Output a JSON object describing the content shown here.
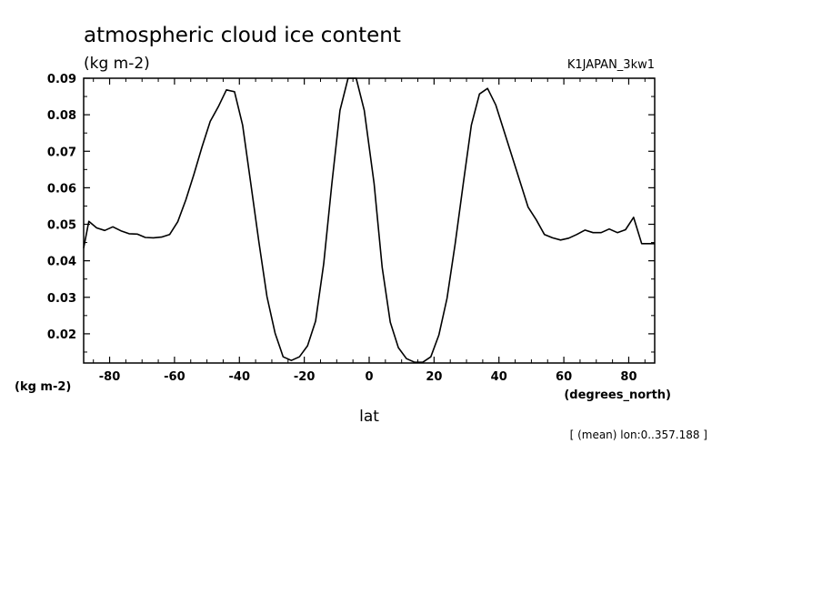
{
  "chart_data": {
    "type": "line",
    "title": "atmospheric cloud ice content",
    "subtitle": "(kg m-2)",
    "run_label": "K1JAPAN_3kw1",
    "ylabel": "(kg m-2)",
    "xlabel": "lat",
    "xunit": "(degrees_north)",
    "footnote": "[ (mean) lon:0..357.188 ]",
    "xlim": [
      -88,
      88
    ],
    "ylim": [
      0.012,
      0.09
    ],
    "xticks": [
      -80,
      -60,
      -40,
      -20,
      0,
      20,
      40,
      60,
      80
    ],
    "xtick_labels": [
      "-80",
      "-60",
      "-40",
      "-20",
      "0",
      "20",
      "40",
      "60",
      "80"
    ],
    "yticks": [
      0.02,
      0.03,
      0.04,
      0.05,
      0.06,
      0.07,
      0.08,
      0.09
    ],
    "ytick_labels": [
      "0.02",
      "0.03",
      "0.04",
      "0.05",
      "0.06",
      "0.07",
      "0.08",
      "0.09"
    ],
    "grid": false,
    "series": [
      {
        "x": [
          -88,
          -86.4,
          -84,
          -81.5,
          -79,
          -76.5,
          -74,
          -71.5,
          -69,
          -66.5,
          -64,
          -61.5,
          -59,
          -56.5,
          -54,
          -51.5,
          -49,
          -46.5,
          -44,
          -41.5,
          -39,
          -36.5,
          -34,
          -31.5,
          -29,
          -26.5,
          -24,
          -21.5,
          -19,
          -16.5,
          -14,
          -11.5,
          -9,
          -6.5,
          -4,
          -1.5,
          1.5,
          4,
          6.5,
          9,
          11.5,
          14,
          16.5,
          19,
          21.5,
          24,
          26.5,
          29,
          31.5,
          34,
          36.5,
          39,
          41.5,
          44,
          46.5,
          49,
          51.5,
          54,
          56.5,
          59,
          61.5,
          64,
          66.5,
          69,
          71.5,
          74,
          76.5,
          79,
          81.5,
          84,
          86.4,
          88
        ],
        "y": [
          0.0435,
          0.0508,
          0.049,
          0.0483,
          0.0493,
          0.0482,
          0.0474,
          0.0473,
          0.0464,
          0.0463,
          0.0465,
          0.0472,
          0.0507,
          0.0567,
          0.0637,
          0.0712,
          0.0782,
          0.0822,
          0.0868,
          0.0863,
          0.0772,
          0.0612,
          0.0452,
          0.0302,
          0.0202,
          0.0137,
          0.0127,
          0.0137,
          0.0167,
          0.0235,
          0.0392,
          0.0612,
          0.0812,
          0.0902,
          0.0902,
          0.0812,
          0.0612,
          0.0382,
          0.0232,
          0.0162,
          0.0132,
          0.0122,
          0.0122,
          0.0137,
          0.0197,
          0.0297,
          0.0447,
          0.0612,
          0.0772,
          0.0857,
          0.0872,
          0.0827,
          0.0757,
          0.0687,
          0.0617,
          0.0547,
          0.0512,
          0.0472,
          0.0463,
          0.0457,
          0.0462,
          0.0472,
          0.0484,
          0.0477,
          0.0477,
          0.0487,
          0.0477,
          0.0485,
          0.0519,
          0.0447,
          0.0447,
          0.0447
        ]
      }
    ]
  }
}
